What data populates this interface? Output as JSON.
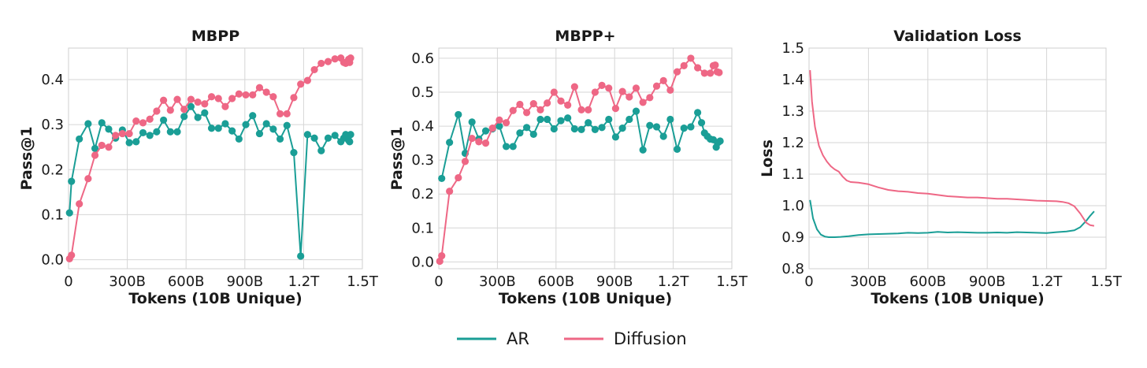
{
  "colors": {
    "ar": "#1a9e96",
    "diffusion": "#ee6785"
  },
  "legend": {
    "items": [
      {
        "label": "AR",
        "color": "#1a9e96"
      },
      {
        "label": "Diffusion",
        "color": "#ee6785"
      }
    ]
  },
  "chart_data": [
    {
      "type": "line",
      "title": "MBPP",
      "xlabel": "Tokens (10B Unique)",
      "ylabel": "Pass@1",
      "xlim": [
        0,
        1500
      ],
      "ylim": [
        -0.02,
        0.47
      ],
      "xticks": [
        0,
        300,
        600,
        900,
        1200,
        1500
      ],
      "xtick_labels": [
        "0",
        "300B",
        "600B",
        "900B",
        "1.2T",
        "1.5T"
      ],
      "yticks": [
        0.0,
        0.1,
        0.2,
        0.3,
        0.4
      ],
      "ytick_labels": [
        "0.0",
        "0.1",
        "0.2",
        "0.3",
        "0.4"
      ],
      "markers": true,
      "grid": true,
      "series": [
        {
          "name": "AR",
          "x": [
            5,
            15,
            55,
            100,
            135,
            170,
            205,
            240,
            275,
            310,
            345,
            380,
            415,
            450,
            485,
            520,
            555,
            590,
            625,
            660,
            695,
            730,
            765,
            800,
            835,
            870,
            905,
            940,
            975,
            1010,
            1045,
            1080,
            1115,
            1150,
            1185,
            1220,
            1255,
            1290,
            1325,
            1360,
            1390,
            1405,
            1415,
            1425,
            1430,
            1435,
            1440
          ],
          "y": [
            0.104,
            0.174,
            0.268,
            0.302,
            0.247,
            0.304,
            0.29,
            0.27,
            0.288,
            0.26,
            0.262,
            0.282,
            0.276,
            0.284,
            0.31,
            0.284,
            0.284,
            0.318,
            0.34,
            0.316,
            0.326,
            0.292,
            0.292,
            0.302,
            0.286,
            0.268,
            0.3,
            0.32,
            0.28,
            0.302,
            0.29,
            0.268,
            0.298,
            0.238,
            0.008,
            0.278,
            0.27,
            0.242,
            0.27,
            0.276,
            0.262,
            0.27,
            0.278,
            0.272,
            0.265,
            0.262,
            0.278
          ]
        },
        {
          "name": "Diffusion",
          "x": [
            5,
            15,
            55,
            100,
            135,
            170,
            205,
            240,
            275,
            310,
            345,
            380,
            415,
            450,
            485,
            520,
            555,
            590,
            625,
            660,
            695,
            730,
            765,
            800,
            835,
            870,
            905,
            940,
            975,
            1010,
            1045,
            1080,
            1115,
            1150,
            1185,
            1220,
            1255,
            1290,
            1325,
            1360,
            1390,
            1405,
            1415,
            1425,
            1430,
            1435,
            1440
          ],
          "y": [
            0.002,
            0.01,
            0.124,
            0.18,
            0.232,
            0.254,
            0.25,
            0.276,
            0.28,
            0.28,
            0.308,
            0.304,
            0.312,
            0.33,
            0.354,
            0.332,
            0.356,
            0.334,
            0.356,
            0.35,
            0.346,
            0.362,
            0.358,
            0.34,
            0.358,
            0.368,
            0.366,
            0.366,
            0.382,
            0.372,
            0.362,
            0.324,
            0.324,
            0.36,
            0.39,
            0.398,
            0.422,
            0.436,
            0.44,
            0.446,
            0.448,
            0.438,
            0.436,
            0.44,
            0.445,
            0.438,
            0.448
          ]
        }
      ]
    },
    {
      "type": "line",
      "title": "MBPP+",
      "xlabel": "Tokens (10B Unique)",
      "ylabel": "Pass@1",
      "xlim": [
        0,
        1500
      ],
      "ylim": [
        -0.02,
        0.63
      ],
      "xticks": [
        0,
        300,
        600,
        900,
        1200,
        1500
      ],
      "xtick_labels": [
        "0",
        "300B",
        "600B",
        "900B",
        "1.2T",
        "1.5T"
      ],
      "yticks": [
        0.0,
        0.1,
        0.2,
        0.3,
        0.4,
        0.5,
        0.6
      ],
      "ytick_labels": [
        "0.0",
        "0.1",
        "0.2",
        "0.3",
        "0.4",
        "0.5",
        "0.6"
      ],
      "markers": true,
      "grid": true,
      "series": [
        {
          "name": "AR",
          "x": [
            15,
            55,
            100,
            135,
            170,
            205,
            240,
            275,
            310,
            345,
            380,
            415,
            450,
            485,
            520,
            555,
            590,
            625,
            660,
            695,
            730,
            765,
            800,
            835,
            870,
            905,
            940,
            975,
            1010,
            1045,
            1080,
            1115,
            1150,
            1185,
            1220,
            1255,
            1290,
            1325,
            1345,
            1360,
            1375,
            1390,
            1405,
            1420,
            1430,
            1440
          ],
          "y": [
            0.246,
            0.352,
            0.434,
            0.32,
            0.412,
            0.362,
            0.386,
            0.392,
            0.4,
            0.34,
            0.34,
            0.38,
            0.396,
            0.376,
            0.42,
            0.42,
            0.392,
            0.416,
            0.424,
            0.392,
            0.39,
            0.41,
            0.39,
            0.396,
            0.42,
            0.368,
            0.394,
            0.42,
            0.444,
            0.33,
            0.402,
            0.398,
            0.37,
            0.42,
            0.332,
            0.394,
            0.398,
            0.44,
            0.41,
            0.38,
            0.37,
            0.362,
            0.36,
            0.338,
            0.352,
            0.356
          ]
        },
        {
          "name": "Diffusion",
          "x": [
            5,
            15,
            55,
            100,
            135,
            170,
            205,
            240,
            275,
            310,
            345,
            380,
            415,
            450,
            485,
            520,
            555,
            590,
            625,
            660,
            695,
            730,
            765,
            800,
            835,
            870,
            905,
            940,
            975,
            1010,
            1045,
            1080,
            1115,
            1150,
            1185,
            1220,
            1255,
            1290,
            1325,
            1360,
            1390,
            1405,
            1415,
            1425,
            1435
          ],
          "y": [
            0.002,
            0.018,
            0.208,
            0.248,
            0.296,
            0.364,
            0.354,
            0.35,
            0.394,
            0.418,
            0.41,
            0.446,
            0.464,
            0.44,
            0.466,
            0.448,
            0.468,
            0.5,
            0.474,
            0.462,
            0.516,
            0.448,
            0.448,
            0.5,
            0.52,
            0.512,
            0.452,
            0.502,
            0.486,
            0.512,
            0.47,
            0.484,
            0.518,
            0.534,
            0.506,
            0.56,
            0.578,
            0.6,
            0.572,
            0.556,
            0.556,
            0.578,
            0.58,
            0.56,
            0.558
          ]
        }
      ]
    },
    {
      "type": "line",
      "title": "Validation Loss",
      "xlabel": "Tokens (10B Unique)",
      "ylabel": "Loss",
      "xlim": [
        0,
        1500
      ],
      "ylim": [
        0.8,
        1.5
      ],
      "xticks": [
        0,
        300,
        600,
        900,
        1200,
        1500
      ],
      "xtick_labels": [
        "0",
        "300B",
        "600B",
        "900B",
        "1.2T",
        "1.5T"
      ],
      "yticks": [
        0.8,
        0.9,
        1.0,
        1.1,
        1.2,
        1.3,
        1.4,
        1.5
      ],
      "ytick_labels": [
        "0.8",
        "0.9",
        "1.0",
        "1.1",
        "1.2",
        "1.3",
        "1.4",
        "1.5"
      ],
      "markers": false,
      "grid": true,
      "series": [
        {
          "name": "AR",
          "x": [
            5,
            20,
            40,
            60,
            80,
            100,
            130,
            160,
            200,
            250,
            300,
            350,
            400,
            450,
            500,
            550,
            600,
            650,
            700,
            750,
            800,
            850,
            900,
            950,
            1000,
            1050,
            1100,
            1150,
            1200,
            1250,
            1300,
            1340,
            1370,
            1400,
            1420,
            1440
          ],
          "y": [
            1.018,
            0.96,
            0.925,
            0.908,
            0.902,
            0.9,
            0.9,
            0.901,
            0.903,
            0.907,
            0.909,
            0.91,
            0.911,
            0.912,
            0.914,
            0.913,
            0.914,
            0.917,
            0.915,
            0.916,
            0.915,
            0.914,
            0.914,
            0.915,
            0.914,
            0.916,
            0.915,
            0.914,
            0.913,
            0.916,
            0.918,
            0.922,
            0.932,
            0.952,
            0.968,
            0.982
          ]
        },
        {
          "name": "Diffusion",
          "x": [
            5,
            15,
            30,
            50,
            70,
            90,
            110,
            130,
            150,
            170,
            190,
            210,
            250,
            300,
            350,
            400,
            450,
            500,
            550,
            600,
            650,
            700,
            750,
            800,
            850,
            900,
            950,
            1000,
            1050,
            1100,
            1150,
            1200,
            1250,
            1280,
            1310,
            1340,
            1370,
            1400,
            1420,
            1440
          ],
          "y": [
            1.43,
            1.33,
            1.25,
            1.19,
            1.16,
            1.14,
            1.125,
            1.115,
            1.108,
            1.092,
            1.08,
            1.075,
            1.073,
            1.068,
            1.058,
            1.05,
            1.046,
            1.044,
            1.04,
            1.038,
            1.034,
            1.03,
            1.028,
            1.026,
            1.026,
            1.024,
            1.022,
            1.022,
            1.02,
            1.018,
            1.016,
            1.015,
            1.014,
            1.012,
            1.008,
            0.998,
            0.975,
            0.946,
            0.938,
            0.936
          ]
        }
      ]
    }
  ]
}
